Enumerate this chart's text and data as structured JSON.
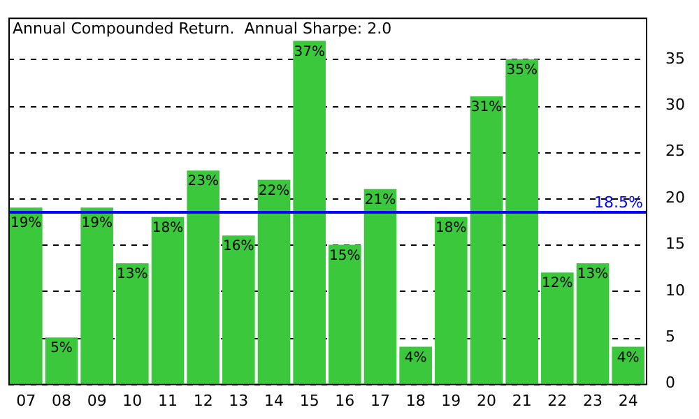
{
  "chart_data": {
    "type": "bar",
    "title": "Annual Compounded Return.  Annual Sharpe: 2.0",
    "categories": [
      "07",
      "08",
      "09",
      "10",
      "11",
      "12",
      "13",
      "14",
      "15",
      "16",
      "17",
      "18",
      "19",
      "20",
      "21",
      "22",
      "23",
      "24"
    ],
    "values": [
      19,
      5,
      19,
      13,
      18,
      23,
      16,
      22,
      37,
      15,
      21,
      4,
      18,
      31,
      35,
      12,
      13,
      4
    ],
    "value_labels": [
      "19%",
      "5%",
      "19%",
      "13%",
      "18%",
      "23%",
      "16%",
      "22%",
      "37%",
      "15%",
      "21%",
      "4%",
      "18%",
      "31%",
      "35%",
      "12%",
      "13%",
      "4%"
    ],
    "color": "#3cc83c",
    "ylim": [
      0,
      39.5
    ],
    "yticks": [
      0,
      5,
      10,
      15,
      20,
      25,
      30,
      35
    ],
    "grid": "y",
    "legend": false,
    "ref_lines": [
      {
        "axis": "y",
        "value": 18.5,
        "label": "18.5%",
        "color": "#0000ff"
      }
    ]
  }
}
